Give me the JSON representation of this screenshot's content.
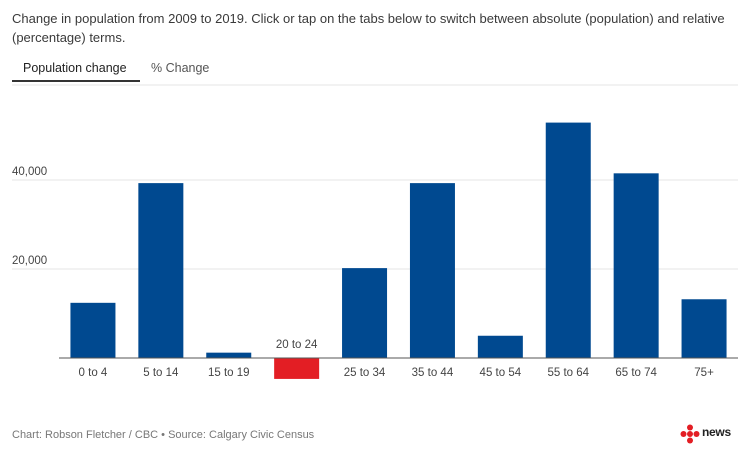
{
  "description": "Change in population from 2009 to 2019. Click or tap on the tabs below to switch between absolute (population) and relative (percentage) terms.",
  "tabs": [
    {
      "label": "Population change",
      "active": true
    },
    {
      "label": "% Change",
      "active": false
    }
  ],
  "footer": {
    "credit": "Chart: Robson Fletcher / CBC • Source: Calgary Civic Census",
    "logo_text": "news"
  },
  "colors": {
    "bar": "#004990",
    "highlight": "#e31e24",
    "logo_red": "#e31e24"
  },
  "chart_data": {
    "type": "bar",
    "categories": [
      "0 to 4",
      "5 to 14",
      "15 to 19",
      "20 to 24",
      "25 to 34",
      "35 to 44",
      "45 to 54",
      "55 to 64",
      "65 to 74",
      "75+"
    ],
    "values": [
      12400,
      39300,
      1200,
      -4700,
      20200,
      39300,
      5000,
      52900,
      41500,
      13200
    ],
    "highlight_category": "20 to 24",
    "y_ticks": [
      20000,
      40000
    ],
    "y_tick_labels": [
      "20,000",
      "40,000"
    ],
    "ylim": [
      -4700,
      60000
    ],
    "grid": true,
    "title": "",
    "xlabel": "",
    "ylabel": ""
  }
}
